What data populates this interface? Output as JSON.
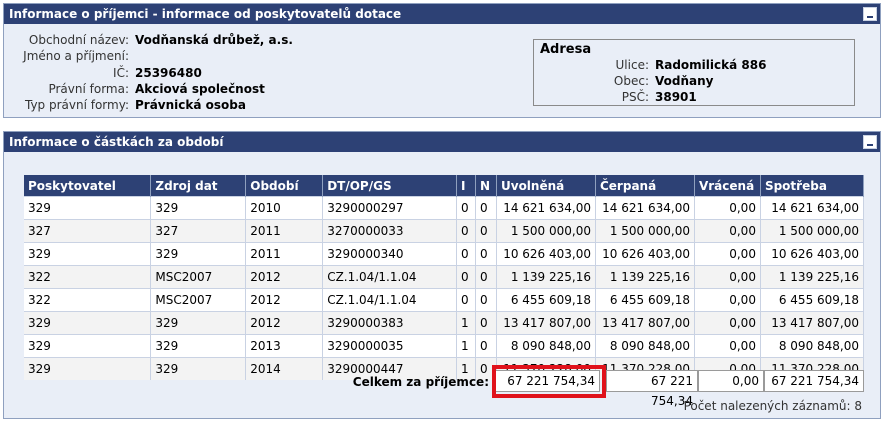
{
  "recipient_panel": {
    "title": "Informace o příjemci - informace od poskytovatelů dotace",
    "fields": [
      {
        "label": "Obchodní název:",
        "value": "Vodňanská drůbež, a.s."
      },
      {
        "label": "Jméno a příjmení:",
        "value": ""
      },
      {
        "label": "IČ:",
        "value": "25396480"
      },
      {
        "label": "Právní forma:",
        "value": "Akciová společnost"
      },
      {
        "label": "Typ právní formy:",
        "value": "Právnická osoba"
      }
    ],
    "address": {
      "title": "Adresa",
      "fields": [
        {
          "label": "Ulice:",
          "value": "Radomilická 886"
        },
        {
          "label": "Obec:",
          "value": "Vodňany"
        },
        {
          "label": "PSČ:",
          "value": "38901"
        }
      ]
    }
  },
  "amounts_panel": {
    "title": "Informace o částkách za období",
    "columns": [
      "Poskytovatel",
      "Zdroj dat",
      "Období",
      "DT/OP/GS",
      "I",
      "N",
      "Uvolněná",
      "Čerpaná",
      "Vrácená",
      "Spotřeba"
    ],
    "rows": [
      [
        "329",
        "329",
        "2010",
        "3290000297",
        "0",
        "0",
        "14 621 634,00",
        "14 621 634,00",
        "0,00",
        "14 621 634,00"
      ],
      [
        "327",
        "327",
        "2011",
        "3270000033",
        "0",
        "0",
        "1 500 000,00",
        "1 500 000,00",
        "0,00",
        "1 500 000,00"
      ],
      [
        "329",
        "329",
        "2011",
        "3290000340",
        "0",
        "0",
        "10 626 403,00",
        "10 626 403,00",
        "0,00",
        "10 626 403,00"
      ],
      [
        "322",
        "MSC2007",
        "2012",
        "CZ.1.04/1.1.04",
        "0",
        "0",
        "1 139 225,16",
        "1 139 225,16",
        "0,00",
        "1 139 225,16"
      ],
      [
        "322",
        "MSC2007",
        "2012",
        "CZ.1.04/1.1.04",
        "0",
        "0",
        "6 455 609,18",
        "6 455 609,18",
        "0,00",
        "6 455 609,18"
      ],
      [
        "329",
        "329",
        "2012",
        "3290000383",
        "1",
        "0",
        "13 417 807,00",
        "13 417 807,00",
        "0,00",
        "13 417 807,00"
      ],
      [
        "329",
        "329",
        "2013",
        "3290000035",
        "1",
        "0",
        "8 090 848,00",
        "8 090 848,00",
        "0,00",
        "8 090 848,00"
      ],
      [
        "329",
        "329",
        "2014",
        "3290000447",
        "1",
        "0",
        "11 370 228,00",
        "11 370 228,00",
        "0,00",
        "11 370 228,00"
      ]
    ],
    "total_label": "Celkem za příjemce:",
    "totals": {
      "uvolnena": "67 221 754,34",
      "cerpana": "67 221 754,34",
      "vracena": "0,00",
      "spotreba": "67 221 754,34"
    },
    "record_count_text": "Počet nalezených záznamů: 8"
  },
  "colors": {
    "header_bg": "#2d4175",
    "panel_bg": "#e9eef7",
    "highlight": "#e0121b"
  }
}
